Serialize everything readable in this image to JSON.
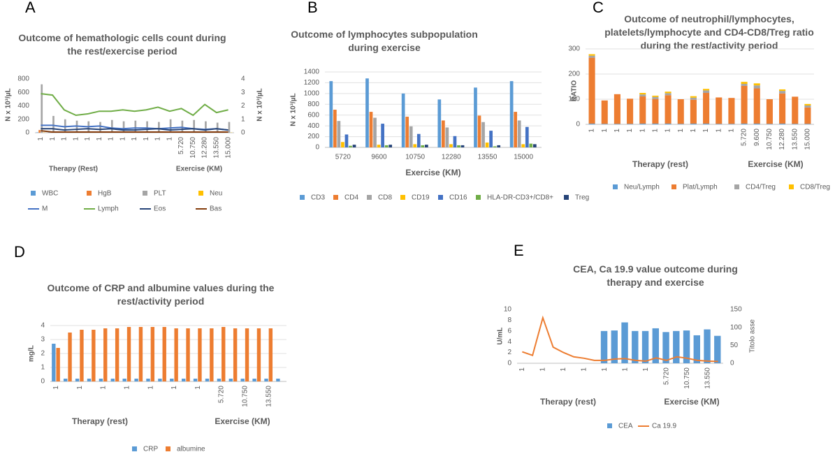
{
  "chart_data": [
    {
      "panel": "A",
      "type": "combo",
      "title": "Outcome of hemathologic cells count during the rest/exercise period",
      "ylabel": "N x 10³/µL",
      "y2label": "N x 10³/µL",
      "group_labels": [
        "Therapy (Rest)",
        "Exercise (KM)"
      ],
      "categories": [
        "1",
        "1",
        "1",
        "1",
        "1",
        "1",
        "1",
        "1",
        "1",
        "1",
        "1",
        "1",
        "5.720",
        "10.750",
        "12.280",
        "13.550",
        "15.000"
      ],
      "ylim": [
        0,
        800
      ],
      "yticks": [
        0,
        200,
        400,
        600,
        800
      ],
      "y2lim": [
        0,
        4
      ],
      "y2ticks": [
        0,
        1,
        2,
        3,
        4
      ],
      "grid": false,
      "series": [
        {
          "name": "WBC",
          "color": "#5b9bd5",
          "values": [
            6,
            5,
            4,
            5,
            5,
            5,
            6,
            5,
            5,
            5,
            5,
            6,
            6,
            5,
            5,
            5,
            6
          ]
        },
        {
          "name": "HgB",
          "color": "#ed7d31",
          "values": [
            40,
            12,
            12,
            12,
            12,
            12,
            12,
            12,
            12,
            12,
            12,
            12,
            13,
            13,
            13,
            13,
            13
          ]
        },
        {
          "name": "PLT",
          "color": "#a5a5a5",
          "values": [
            720,
            250,
            200,
            180,
            170,
            160,
            190,
            170,
            180,
            170,
            160,
            200,
            180,
            190,
            170,
            150,
            160
          ]
        },
        {
          "name": "Neu",
          "color": "#ffc000",
          "values": [
            4,
            3,
            3,
            3,
            3,
            3,
            3,
            3,
            3,
            3,
            3,
            3,
            3,
            3,
            3,
            3,
            3
          ]
        },
        {
          "name": "M",
          "color": "#4472c4",
          "type": "line",
          "axis": "y2",
          "values": [
            0.55,
            0.55,
            0.45,
            0.5,
            0.45,
            0.5,
            0.35,
            0.3,
            0.35,
            0.35,
            0.3,
            0.35,
            0.4,
            0.3,
            0.25,
            0.3,
            0.2
          ]
        },
        {
          "name": "Lymph",
          "color": "#70ad47",
          "type": "line",
          "axis": "y2",
          "values": [
            2.9,
            2.8,
            1.7,
            1.3,
            1.4,
            1.6,
            1.6,
            1.7,
            1.6,
            1.7,
            1.9,
            1.6,
            1.8,
            1.3,
            2.1,
            1.5,
            1.7
          ]
        },
        {
          "name": "Eos",
          "color": "#264478",
          "type": "line",
          "axis": "y2",
          "values": [
            0.3,
            0.3,
            0.2,
            0.25,
            0.3,
            0.25,
            0.3,
            0.2,
            0.2,
            0.25,
            0.3,
            0.2,
            0.25,
            0.3,
            0.2,
            0.3,
            0.2
          ]
        },
        {
          "name": "Bas",
          "color": "#843c0c",
          "type": "line",
          "axis": "y2",
          "values": [
            0.15,
            0.05,
            0.05,
            0.05,
            0.05,
            0.05,
            0.05,
            0.05,
            0.05,
            0.05,
            0.05,
            0.05,
            0.05,
            0.05,
            0.05,
            0.05,
            0.05
          ]
        }
      ]
    },
    {
      "panel": "B",
      "type": "bar",
      "title": "Outcome  of lymphocytes subpopulation during exercise",
      "ylabel": "N x 10³/µL",
      "xlabel": "Exercise (KM)",
      "categories": [
        "5720",
        "9600",
        "10750",
        "12280",
        "13550",
        "15000"
      ],
      "ylim": [
        0,
        1400
      ],
      "yticks": [
        0,
        200,
        400,
        600,
        800,
        1000,
        1200,
        1400
      ],
      "grid": true,
      "series": [
        {
          "name": "CD3",
          "color": "#5b9bd5",
          "values": [
            1230,
            1280,
            1000,
            890,
            1110,
            1230
          ]
        },
        {
          "name": "CD4",
          "color": "#ed7d31",
          "values": [
            700,
            660,
            570,
            500,
            590,
            660
          ]
        },
        {
          "name": "CD8",
          "color": "#a5a5a5",
          "values": [
            490,
            550,
            390,
            370,
            470,
            500
          ]
        },
        {
          "name": "CD19",
          "color": "#ffc000",
          "values": [
            100,
            50,
            60,
            60,
            90,
            60
          ]
        },
        {
          "name": "CD16",
          "color": "#4472c4",
          "values": [
            240,
            440,
            250,
            210,
            310,
            380
          ]
        },
        {
          "name": "HLA-DR-CD3+/CD8+",
          "color": "#70ad47",
          "values": [
            30,
            40,
            40,
            40,
            20,
            70
          ]
        },
        {
          "name": "Treg",
          "color": "#264478",
          "values": [
            50,
            50,
            50,
            40,
            40,
            60
          ]
        }
      ]
    },
    {
      "panel": "C",
      "type": "stacked_bar",
      "title": "Outcome of neutrophil/lymphocytes, platelets/lymphocyte and CD4-CD8/Treg  ratio during the rest/activity period",
      "ylabel": "RATIO",
      "group_labels": [
        "Therapy (rest)",
        "Exercise (KM)"
      ],
      "categories": [
        "1",
        "1",
        "1",
        "1",
        "1",
        "1",
        "1",
        "1",
        "1",
        "1",
        "1",
        "1",
        "5.720",
        "9.600",
        "10.750",
        "12.280",
        "13.550",
        "15.000"
      ],
      "ylim": [
        0,
        300
      ],
      "yticks": [
        0,
        100,
        200,
        300
      ],
      "grid": true,
      "series": [
        {
          "name": "Neu/Lymph",
          "color": "#5b9bd5",
          "values": [
            3,
            2,
            2,
            2,
            3,
            3,
            3,
            2,
            3,
            3,
            2,
            2,
            3,
            3,
            2,
            3,
            2,
            2
          ]
        },
        {
          "name": "Plat/Lymph",
          "color": "#ed7d31",
          "values": [
            262,
            93,
            118,
            100,
            108,
            98,
            113,
            98,
            95,
            122,
            105,
            103,
            150,
            140,
            98,
            120,
            108,
            65
          ]
        },
        {
          "name": "CD4/Treg",
          "color": "#a5a5a5",
          "values": [
            8,
            null,
            null,
            null,
            8,
            8,
            8,
            null,
            8,
            10,
            null,
            null,
            8,
            12,
            null,
            10,
            null,
            8
          ]
        },
        {
          "name": "CD8/Treg",
          "color": "#ffc000",
          "values": [
            6,
            null,
            null,
            null,
            6,
            5,
            6,
            null,
            6,
            6,
            null,
            null,
            8,
            8,
            null,
            6,
            null,
            6
          ]
        }
      ]
    },
    {
      "panel": "D",
      "type": "bar",
      "title": "Outcome of CRP and albumine values during the rest/activity period",
      "ylabel": "mg/L",
      "group_labels": [
        "Therapy (rest)",
        "Exercise (KM)"
      ],
      "categories": [
        "1",
        null,
        "1",
        null,
        "1",
        null,
        "1",
        null,
        "1",
        null,
        "1",
        null,
        "1",
        null,
        "5.720",
        null,
        "10.750",
        null,
        "13.550",
        null
      ],
      "ylim": [
        0,
        4
      ],
      "yticks": [
        0,
        1,
        2,
        3,
        4
      ],
      "grid": true,
      "series": [
        {
          "name": "CRP",
          "color": "#5b9bd5",
          "values": [
            2.7,
            0.2,
            0.2,
            0.2,
            0.2,
            0.2,
            0.2,
            0.2,
            0.2,
            0.2,
            0.2,
            0.2,
            0.2,
            0.2,
            0.2,
            0.2,
            0.2,
            0.2,
            0.2,
            0.2
          ]
        },
        {
          "name": "albumine",
          "color": "#ed7d31",
          "values": [
            2.4,
            3.5,
            3.7,
            3.7,
            3.8,
            3.8,
            3.9,
            3.9,
            3.9,
            3.9,
            3.8,
            3.8,
            3.8,
            3.8,
            3.9,
            3.8,
            3.8,
            3.8,
            3.8,
            null
          ]
        }
      ]
    },
    {
      "panel": "E",
      "type": "combo",
      "title": "CEA, Ca 19.9 value outcome during therapy and exercise",
      "ylabel": "U/mL",
      "y2label": "Titolo asse",
      "group_labels": [
        "Therapy (rest)",
        "Exercise (KM)"
      ],
      "categories": [
        "1",
        null,
        "1",
        null,
        "1",
        null,
        "1",
        null,
        "1",
        null,
        "1",
        null,
        "1",
        null,
        "5.720",
        null,
        "10.750",
        null,
        "13.550",
        null
      ],
      "ylim": [
        0,
        10
      ],
      "yticks": [
        0,
        2,
        4,
        6,
        8,
        10
      ],
      "y2lim": [
        0,
        150
      ],
      "y2ticks": [
        0,
        50,
        100,
        150
      ],
      "grid": false,
      "series": [
        {
          "name": "CEA",
          "color": "#5b9bd5",
          "values": [
            null,
            null,
            null,
            null,
            null,
            null,
            null,
            null,
            6.0,
            6.1,
            7.6,
            6.0,
            6.0,
            6.5,
            5.8,
            6.0,
            6.1,
            5.2,
            6.3,
            5.1
          ]
        },
        {
          "name": "Ca 19.9",
          "color": "#ed7d31",
          "type": "line",
          "axis": "y2",
          "values": [
            32,
            22,
            127,
            45,
            30,
            18,
            14,
            8,
            8,
            12,
            13,
            8,
            6,
            15,
            8,
            18,
            14,
            8,
            6,
            5
          ]
        }
      ]
    }
  ]
}
